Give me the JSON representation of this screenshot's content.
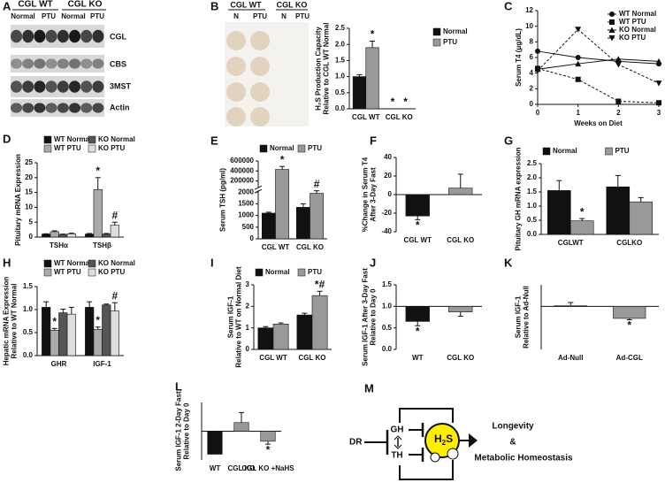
{
  "blot": {
    "panel": "A",
    "groups": [
      "CGL WT",
      "CGL KO"
    ],
    "conditions": [
      "Normal",
      "PTU",
      "Normal",
      "PTU"
    ],
    "bands": [
      "CGL",
      "CBS",
      "3MST",
      "Actin"
    ]
  },
  "plate": {
    "groups": [
      "CGL WT",
      "CGL KO"
    ],
    "conditions": [
      "N",
      "PTU",
      "N",
      "PTU"
    ]
  },
  "diagram": {
    "panel": "M",
    "input": "DR",
    "hormones": [
      "GH",
      "TH"
    ],
    "mediator": {
      "base": "H",
      "sub": "2",
      "tail": "S"
    },
    "outcomes": [
      "Longevity",
      "&",
      "Metabolic Homeostasis"
    ]
  },
  "chart_data": [
    {
      "panel": "B",
      "type": "bar",
      "categories": [
        "CGL WT",
        "CGL KO"
      ],
      "ylabel": [
        "H₂S Production Capacity",
        "Relative to CGL WT Normal"
      ],
      "ylim": [
        0,
        2.5
      ],
      "yticks": [
        {
          "value": 0,
          "label": "0.0"
        },
        {
          "value": 0.5,
          "label": "0.5"
        },
        {
          "value": 1,
          "label": "1.0"
        },
        {
          "value": 1.5,
          "label": "1.5"
        },
        {
          "value": 2,
          "label": "2.0"
        },
        {
          "value": 2.5,
          "label": "2.5"
        }
      ],
      "legend": "right",
      "series": [
        {
          "name": "Normal",
          "color": "#111111",
          "values": [
            1.0,
            0
          ],
          "errors": [
            0.06,
            0
          ],
          "notes": [
            null,
            "*"
          ]
        },
        {
          "name": "PTU",
          "color": "#999999",
          "values": [
            1.9,
            0
          ],
          "errors": [
            0.2,
            0
          ],
          "notes": [
            "*",
            "*"
          ]
        }
      ]
    },
    {
      "panel": "C",
      "type": "line",
      "x": [
        0,
        1,
        2,
        3
      ],
      "xlim": [
        0,
        3
      ],
      "xticks": [
        0,
        1,
        2,
        3
      ],
      "ylim": [
        0,
        12
      ],
      "yticks": [
        0,
        2,
        4,
        6,
        8,
        10,
        12
      ],
      "ylabel": [
        "Serum T4 (μg/dL)"
      ],
      "xlabel": "Weeks on Diet",
      "legend": "top-right",
      "series": [
        {
          "name": "WT Normal",
          "color": "#111111",
          "marker": "circle",
          "dashed": false,
          "values": [
            6.8,
            6.0,
            5.5,
            5.2
          ]
        },
        {
          "name": "WT PTU",
          "color": "#111111",
          "marker": "square",
          "dashed": true,
          "values": [
            4.6,
            3.2,
            0.4,
            0.2
          ]
        },
        {
          "name": "KO Normal",
          "color": "#111111",
          "marker": "triangle",
          "dashed": false,
          "values": [
            4.5,
            5.2,
            5.8,
            5.5
          ]
        },
        {
          "name": "KO PTU",
          "color": "#111111",
          "marker": "triangle-down",
          "dashed": true,
          "values": [
            4.3,
            9.6,
            5.1,
            2.7
          ]
        }
      ]
    },
    {
      "panel": "D",
      "type": "bar",
      "categories": [
        "TSHα",
        "TSHβ"
      ],
      "ylabel": [
        "Pituitary mRNA Expression"
      ],
      "ylim": [
        0,
        25
      ],
      "yticks": [
        0,
        5,
        10,
        15,
        20,
        25
      ],
      "legend": "top",
      "series": [
        {
          "name": "WT Normal",
          "color": "#111111",
          "values": [
            1,
            1
          ],
          "errors": [
            0.1,
            0.2
          ]
        },
        {
          "name": "WT PTU",
          "color": "#aaaaaa",
          "values": [
            1.8,
            16
          ],
          "errors": [
            0.3,
            4
          ],
          "notes": [
            null,
            "*"
          ]
        },
        {
          "name": "KO Normal",
          "color": "#555555",
          "values": [
            0.9,
            1
          ],
          "errors": [
            0.1,
            0.2
          ]
        },
        {
          "name": "KO PTU",
          "color": "#dddddd",
          "values": [
            1.1,
            4
          ],
          "errors": [
            0.2,
            1
          ],
          "notes": [
            null,
            "#"
          ]
        }
      ]
    },
    {
      "panel": "E",
      "type": "bar",
      "categories": [
        "CGL WT",
        "CGL KO"
      ],
      "ylabel": [
        "Serum TSH (pg/ml)"
      ],
      "ylim": [
        0,
        600000
      ],
      "axis_break": [
        2000,
        100000
      ],
      "yticks": [
        0,
        500,
        1000,
        1500,
        2000,
        200000,
        400000,
        600000
      ],
      "legend": "top",
      "series": [
        {
          "name": "Normal",
          "color": "#111111",
          "values": [
            1100,
            1350
          ],
          "errors": [
            40,
            150
          ]
        },
        {
          "name": "PTU",
          "color": "#999999",
          "values": [
            430000,
            1950
          ],
          "errors": [
            60000,
            100
          ],
          "notes": [
            "*",
            "#"
          ]
        }
      ]
    },
    {
      "panel": "F",
      "type": "bar",
      "categories": [
        "CGL WT",
        "CGL KO"
      ],
      "ylabel": [
        "%Change in Serum T4",
        "After 3-Day Fast"
      ],
      "ylim": [
        -40,
        40
      ],
      "yticks": [
        -40,
        -20,
        0,
        20,
        40
      ],
      "values": [
        -23,
        7
      ],
      "errors": [
        4,
        15
      ],
      "colors": [
        "#111111",
        "#999999"
      ],
      "notes": [
        "*",
        null
      ]
    },
    {
      "panel": "G",
      "type": "bar",
      "categories": [
        "CGLWT",
        "CGLKO"
      ],
      "ylabel": [
        "Pituitary GH mRNA expression"
      ],
      "ylim": [
        0,
        2.5
      ],
      "yticks": [
        {
          "value": 0,
          "label": "0.0"
        },
        {
          "value": 0.5,
          "label": "0.5"
        },
        {
          "value": 1,
          "label": "1.0"
        },
        {
          "value": 1.5,
          "label": "1.5"
        },
        {
          "value": 2,
          "label": "2.0"
        },
        {
          "value": 2.5,
          "label": "2.5"
        }
      ],
      "legend": "top",
      "series": [
        {
          "name": "Normal",
          "color": "#111111",
          "values": [
            1.55,
            1.68
          ],
          "errors": [
            0.35,
            0.4
          ]
        },
        {
          "name": "PTU",
          "color": "#999999",
          "values": [
            0.48,
            1.15
          ],
          "errors": [
            0.08,
            0.15
          ],
          "notes": [
            "*",
            null
          ]
        }
      ]
    },
    {
      "panel": "H",
      "type": "bar",
      "categories": [
        "GHR",
        "IGF-1"
      ],
      "ylabel": [
        "Hepatic mRNA Expression",
        "Relative to WT  Normal"
      ],
      "ylim": [
        0,
        1.5
      ],
      "yticks": [
        {
          "value": 0,
          "label": "0.0"
        },
        {
          "value": 0.5,
          "label": "0.5"
        },
        {
          "value": 1,
          "label": "1.0"
        },
        {
          "value": 1.5,
          "label": "1.5"
        }
      ],
      "legend": "top",
      "series": [
        {
          "name": "WT Normal",
          "color": "#111111",
          "values": [
            1.05,
            1.05
          ],
          "errors": [
            0.12,
            0.12
          ]
        },
        {
          "name": "WT PTU",
          "color": "#aaaaaa",
          "values": [
            0.55,
            0.57
          ],
          "errors": [
            0.04,
            0.05
          ],
          "notes": [
            "*",
            "*"
          ]
        },
        {
          "name": "KO Normal",
          "color": "#555555",
          "values": [
            0.93,
            1.1
          ],
          "errors": [
            0.08,
            0.02
          ]
        },
        {
          "name": "KO PTU",
          "color": "#dddddd",
          "values": [
            0.9,
            0.97
          ],
          "errors": [
            0.15,
            0.18
          ],
          "notes": [
            null,
            "#"
          ]
        }
      ]
    },
    {
      "panel": "I",
      "type": "bar",
      "categories": [
        "CGL WT",
        "CGL KO"
      ],
      "ylabel": [
        "Serum IGF-1",
        "Relative to WT on Normal  Diet"
      ],
      "ylim": [
        0,
        3
      ],
      "yticks": [
        0,
        1,
        2,
        3
      ],
      "legend": "top",
      "series": [
        {
          "name": "Normal",
          "color": "#111111",
          "values": [
            1.0,
            1.6
          ],
          "errors": [
            0.06,
            0.08
          ]
        },
        {
          "name": "PTU",
          "color": "#999999",
          "values": [
            1.18,
            2.5
          ],
          "errors": [
            0.05,
            0.2
          ],
          "notes": [
            null,
            "*#"
          ]
        }
      ]
    },
    {
      "panel": "J",
      "type": "bar",
      "categories": [
        "WT",
        "CGL KO"
      ],
      "ylabel": [
        "Serum IGF-1 After 3-Day Fast",
        "Relative to Day 0"
      ],
      "ylim": [
        0,
        1.5
      ],
      "yticks": [
        {
          "value": 0,
          "label": "0.0"
        },
        {
          "value": 0.5,
          "label": "0.5"
        },
        {
          "value": 1,
          "label": "1.0"
        },
        {
          "value": 1.5,
          "label": "1.5"
        }
      ],
      "bar_base": 1,
      "values": [
        0.65,
        0.87
      ],
      "errors": [
        0.1,
        0.1
      ],
      "colors": [
        "#111111",
        "#999999"
      ],
      "notes": [
        "*",
        null
      ]
    },
    {
      "panel": "K",
      "type": "bar",
      "categories": [
        "Ad-Null",
        "Ad-CGL"
      ],
      "ylabel": [
        "Serum IGF-1",
        "Relative to Ad-Null"
      ],
      "ylim": [
        0,
        1.5
      ],
      "bar_base": 1,
      "values": [
        1.02,
        0.72
      ],
      "errors": [
        0.07,
        0.03
      ],
      "colors": [
        "#ffffff",
        "#999999"
      ],
      "notes": [
        null,
        "*"
      ]
    },
    {
      "panel": "L",
      "type": "bar",
      "categories": [
        "WT",
        "CGL KO",
        "CGL KO +NaHS"
      ],
      "ylabel": [
        "Serum IGF-1 2-Day Fast",
        "Relative to Day 0"
      ],
      "ylim": [
        0,
        2
      ],
      "bar_base": 1,
      "values": [
        0.2,
        1.3,
        0.65
      ],
      "errors": [
        0,
        0.35,
        0.1
      ],
      "colors": [
        "#111111",
        "#999999",
        "#999999"
      ],
      "notes": [
        null,
        null,
        "*"
      ]
    }
  ]
}
